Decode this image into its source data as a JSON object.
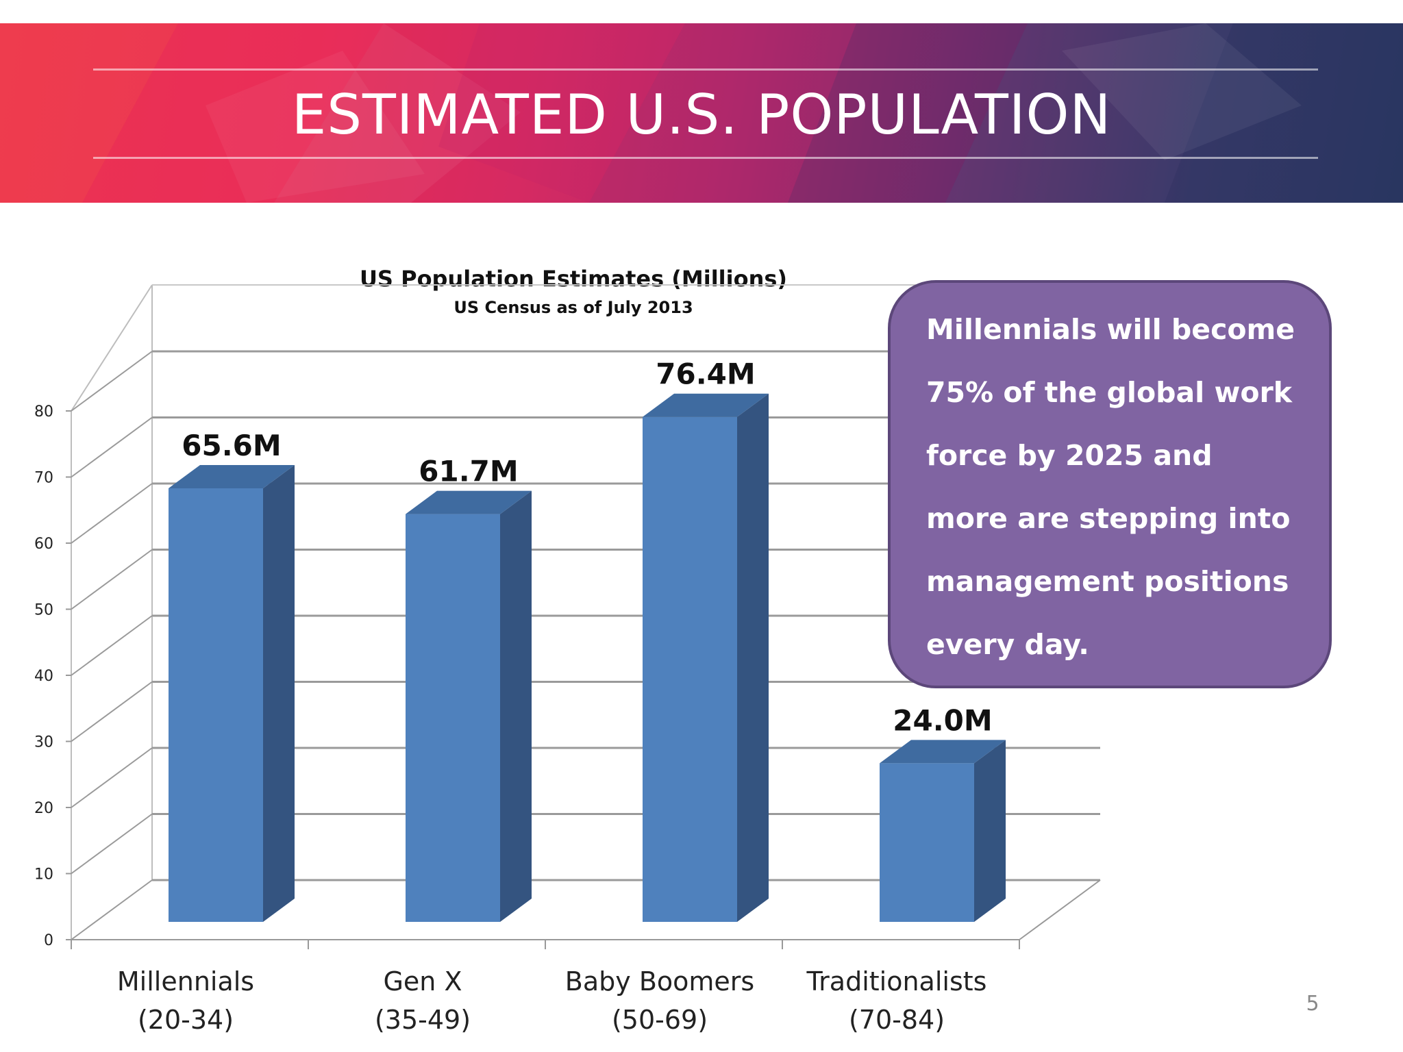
{
  "banner": {
    "title": "ESTIMATED U.S. POPULATION"
  },
  "colors": {
    "bar_front": "#4f81bd",
    "bar_side": "#345480",
    "bar_top": "#3f6ba0",
    "callout_fill": "#8064a2",
    "callout_border": "#5c477a",
    "gridline": "#9a9a9a"
  },
  "chart_data": {
    "type": "bar",
    "style": "3d-column",
    "title": "US Population Estimates (Millions)",
    "subtitle": "US Census as of July 2013",
    "categories": [
      [
        "Millennials",
        "(20-34)"
      ],
      [
        "Gen X",
        "(35-49)"
      ],
      [
        "Baby Boomers",
        "(50-69)"
      ],
      [
        "Traditionalists",
        "(70-84)"
      ]
    ],
    "values": [
      65.6,
      61.7,
      76.4,
      24.0
    ],
    "data_labels": [
      "65.6M",
      "61.7M",
      "76.4M",
      "24.0M"
    ],
    "ylim": [
      0,
      80
    ],
    "yticks": [
      "0",
      "10",
      "20",
      "30",
      "40",
      "50",
      "60",
      "70",
      "80"
    ],
    "grid": true,
    "legend": false
  },
  "callout": {
    "text": "Millennials will become 75% of the global work force by 2025 and more are stepping into management positions every day."
  },
  "page_number": "5"
}
